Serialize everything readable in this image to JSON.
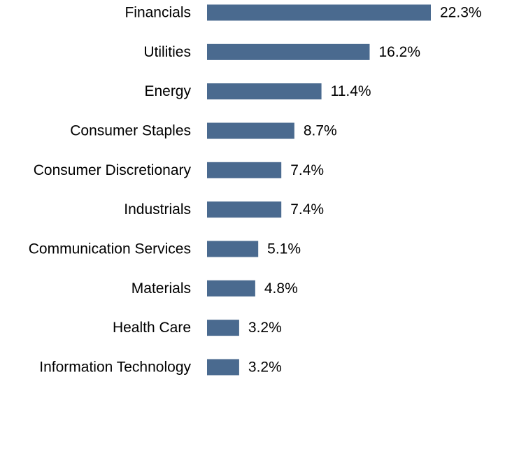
{
  "chart_data": {
    "type": "bar",
    "orientation": "horizontal",
    "title": "",
    "xlabel": "",
    "ylabel": "",
    "value_suffix": "%",
    "grid": false,
    "legend": "none",
    "bar_color": "#4a6a8f",
    "xlim": [
      0,
      22.3
    ],
    "categories": [
      "Financials",
      "Utilities",
      "Energy",
      "Consumer Staples",
      "Consumer Discretionary",
      "Industrials",
      "Communication Services",
      "Materials",
      "Health Care",
      "Information Technology"
    ],
    "values": [
      22.3,
      16.2,
      11.4,
      8.7,
      7.4,
      7.4,
      5.1,
      4.8,
      3.2,
      3.2
    ],
    "value_labels": [
      "22.3%",
      "16.2%",
      "11.4%",
      "8.7%",
      "7.4%",
      "7.4%",
      "5.1%",
      "4.8%",
      "3.2%",
      "3.2%"
    ]
  }
}
